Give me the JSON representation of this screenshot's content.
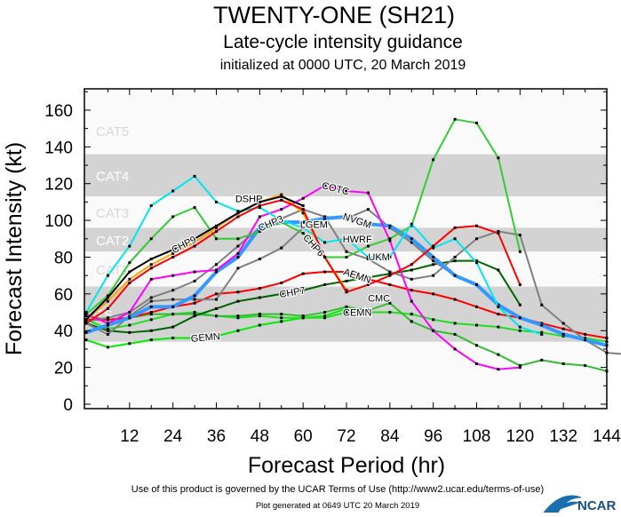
{
  "header": {
    "title": "TWENTY-ONE (SH21)",
    "subtitle": "Late-cycle intensity guidance",
    "init": "initialized at 0000 UTC, 20 March 2019"
  },
  "footer": {
    "terms": "Use of this product is governed by the UCAR Terms of Use (http://www2.ucar.edu/terms-of-use)",
    "generated": "Plot generated at 0649 UTC  20 March 2019",
    "logo": "NCAR"
  },
  "chart_data": {
    "type": "line",
    "xlabel": "Forecast Period (hr)",
    "ylabel": "Forecast Intensity (kt)",
    "xlim": [
      0,
      144
    ],
    "ylim": [
      0,
      160
    ],
    "xticks": [
      12,
      24,
      36,
      48,
      60,
      72,
      84,
      96,
      108,
      120,
      132,
      144
    ],
    "yticks": [
      0,
      20,
      40,
      60,
      80,
      100,
      120,
      140,
      160
    ],
    "x_step_hours": 6,
    "grid": false,
    "bands": [
      {
        "label": "CAT5",
        "from": 136,
        "to": 172,
        "color": "#fafafa",
        "text_color": "#d8d8d8"
      },
      {
        "label": "CAT4",
        "from": 113,
        "to": 136,
        "color": "#d3d3d3",
        "text_color": "#ffffff"
      },
      {
        "label": "CAT3",
        "from": 96,
        "to": 113,
        "color": "#fafafa",
        "text_color": "#d8d8d8"
      },
      {
        "label": "CAT2",
        "from": 83,
        "to": 96,
        "color": "#d3d3d3",
        "text_color": "#ffffff"
      },
      {
        "label": "CAT1",
        "from": 64,
        "to": 83,
        "color": "#fafafa",
        "text_color": "#d8d8d8"
      },
      {
        "label": "TS",
        "from": 34,
        "to": 64,
        "color": "#d3d3d3",
        "text_color": "#ffffff"
      }
    ],
    "series": [
      {
        "name": "GEMN",
        "color": "#00ee00",
        "values": [
          35,
          31,
          33,
          35,
          36,
          36,
          37,
          40,
          43,
          45,
          47,
          48,
          52
        ]
      },
      {
        "name": "CEMN",
        "color": "#22dd22",
        "values": [
          46,
          41,
          43,
          46,
          49,
          50,
          48,
          47,
          48,
          47,
          47,
          47,
          50,
          50,
          50,
          49,
          46,
          44,
          43,
          42,
          40,
          39,
          37,
          36,
          34
        ]
      },
      {
        "name": "CMC",
        "color": "#33bb33",
        "values": [
          48,
          46,
          47,
          49,
          49,
          49,
          48,
          48,
          49,
          49,
          48,
          50,
          53,
          51,
          55,
          45,
          40,
          38,
          32,
          27,
          21,
          24,
          22,
          21,
          18
        ]
      },
      {
        "name": "CHP7",
        "color": "#006400",
        "values": [
          44,
          40,
          39,
          40,
          42,
          48,
          52,
          56,
          58,
          60,
          62,
          65,
          67,
          69,
          71,
          73,
          76,
          78,
          78,
          73,
          54
        ]
      },
      {
        "name": "AEMN",
        "color": "#ff0000",
        "values": [
          46,
          46,
          47,
          50,
          53,
          55,
          60,
          61,
          63,
          66,
          71,
          72,
          72,
          68,
          65,
          62,
          60,
          57,
          53,
          49,
          47,
          44,
          41,
          38,
          36
        ]
      },
      {
        "name": "UKM",
        "color": "#808080",
        "values": [
          44,
          38,
          48,
          56,
          57,
          57,
          57,
          74,
          79,
          85,
          96,
          102,
          83,
          79,
          72,
          68,
          70,
          80,
          90,
          94,
          92,
          54,
          44,
          35,
          28,
          27
        ]
      },
      {
        "name": "CHP3",
        "color": "#808080",
        "values": [
          45,
          47,
          50,
          58,
          62,
          67,
          76,
          86,
          96,
          101,
          106,
          102,
          101,
          106,
          96,
          88,
          78,
          70
        ]
      },
      {
        "name": "NVGM",
        "color": "#3399ff",
        "width": 4,
        "values": [
          39,
          43,
          47,
          53,
          53,
          59,
          72,
          80,
          96,
          99,
          99,
          101,
          102,
          98,
          97,
          90,
          80,
          70,
          65,
          54,
          47,
          43,
          38,
          35,
          32
        ]
      },
      {
        "name": "COTC",
        "color": "#ff00ff",
        "values": [
          49,
          44,
          50,
          68,
          70,
          72,
          73,
          82,
          102,
          106,
          112,
          119,
          116,
          115,
          89,
          56,
          40,
          30,
          22,
          19,
          20
        ]
      },
      {
        "name": "CHP6",
        "color": "#33cc33",
        "values": [
          49,
          59,
          77,
          90,
          102,
          107,
          90,
          90,
          94,
          99,
          93,
          80,
          80,
          86,
          90,
          97,
          133,
          155,
          153,
          134,
          83
        ]
      },
      {
        "name": "HWRF",
        "color": "#00e5ee",
        "values": [
          50,
          70,
          86,
          108,
          116,
          124,
          110,
          105,
          107,
          100,
          96,
          88,
          90,
          80,
          80,
          98,
          85,
          90,
          77,
          53,
          42,
          38
        ]
      },
      {
        "name": "DSHP",
        "color": "#ffa500",
        "values": [
          46,
          56,
          68,
          76,
          82,
          88,
          96,
          104,
          110,
          114,
          104,
          80,
          62
        ]
      },
      {
        "name": "CHP9",
        "color": "#000000",
        "values": [
          46,
          58,
          72,
          79,
          84,
          90,
          97,
          104,
          110,
          113,
          108
        ]
      },
      {
        "name": "LGEM",
        "color": "#ff0000",
        "values": [
          44,
          52,
          66,
          74,
          80,
          86,
          94,
          102,
          108,
          111,
          106,
          80,
          61,
          65,
          70,
          76,
          86,
          96,
          97,
          93,
          65
        ]
      }
    ]
  }
}
